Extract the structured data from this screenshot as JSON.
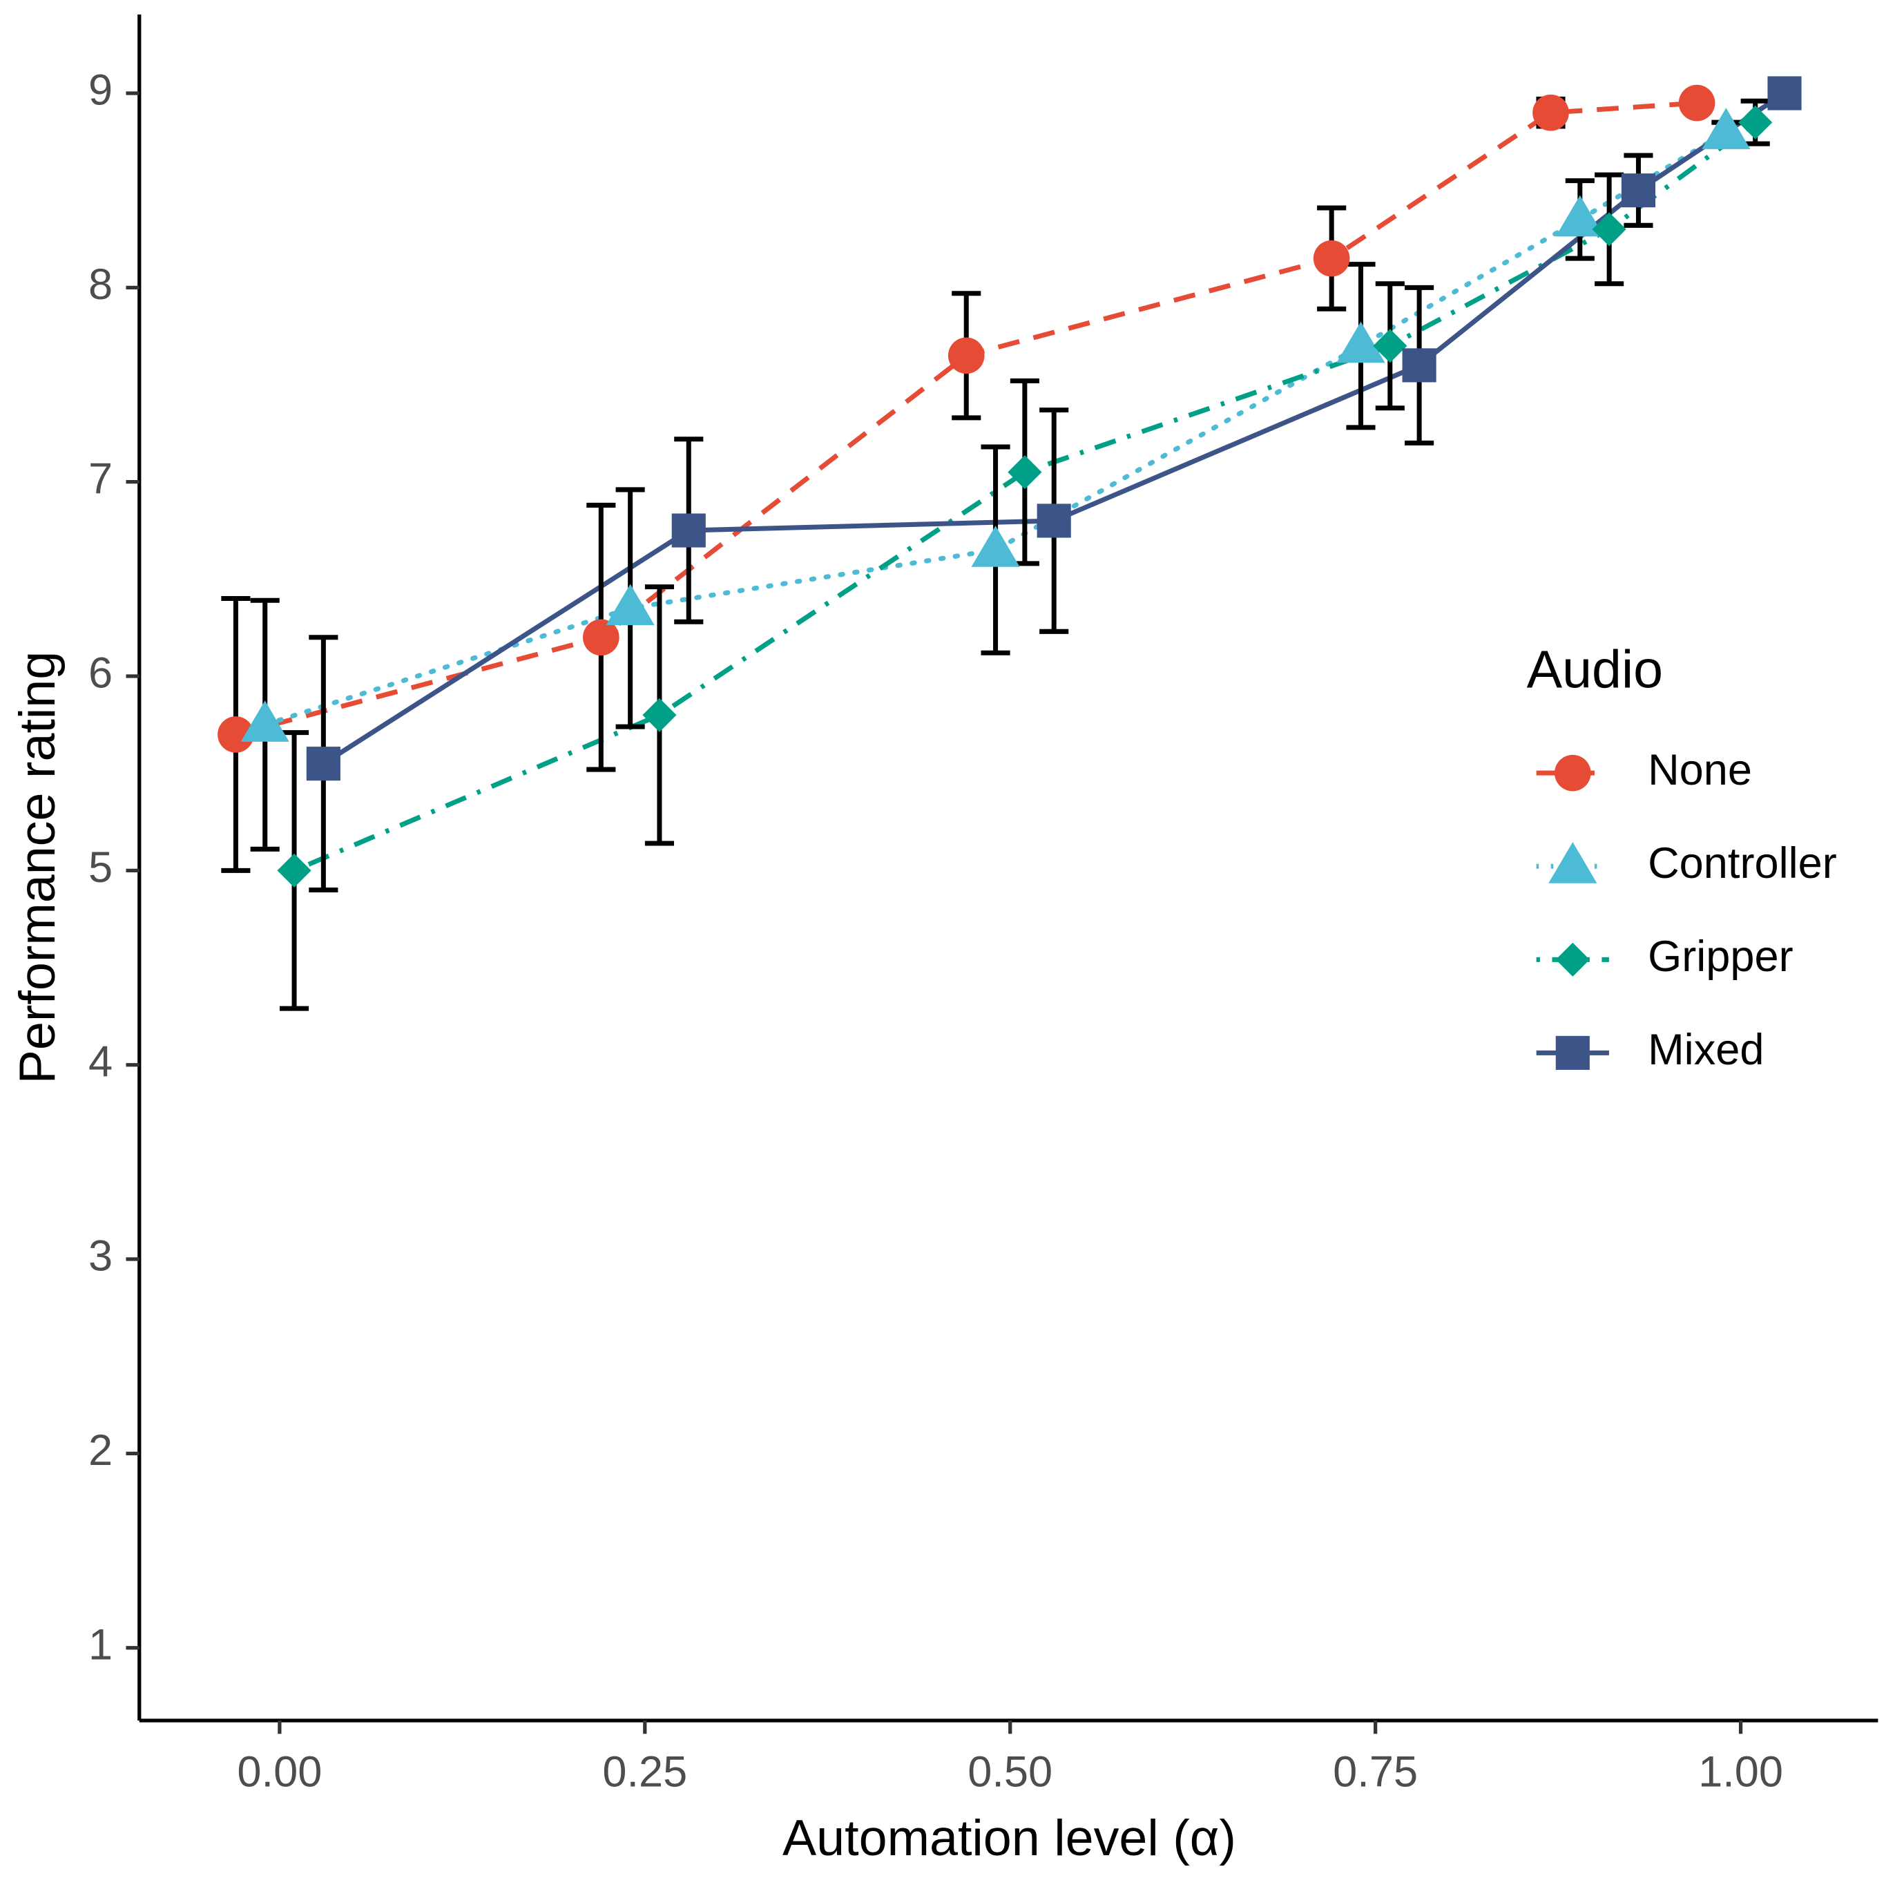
{
  "chart_data": {
    "type": "line",
    "xlabel": "Automation level (α)",
    "ylabel": "Performance rating",
    "legend_title": "Audio",
    "legend_position": "right",
    "grid": false,
    "xlim": [
      -0.096,
      1.094
    ],
    "ylim": [
      0.626,
      9.405
    ],
    "xticks": [
      {
        "value": 0,
        "label": "0.00"
      },
      {
        "value": 0.25,
        "label": "0.25"
      },
      {
        "value": 0.5,
        "label": "0.50"
      },
      {
        "value": 0.75,
        "label": "0.75"
      },
      {
        "value": 1,
        "label": "1.00"
      }
    ],
    "yticks": [
      1,
      2,
      3,
      4,
      5,
      6,
      7,
      8,
      9
    ],
    "series": [
      {
        "name": "None",
        "color": "#E64B35",
        "linestyle": "dashed",
        "marker": "circle",
        "x": [
          -0.03,
          0.22,
          0.47,
          0.72,
          0.87,
          0.97
        ],
        "values": [
          5.7,
          6.2,
          7.65,
          8.15,
          8.9,
          8.95
        ],
        "errors": [
          0.7,
          0.68,
          0.32,
          0.26,
          0.07,
          0.03
        ]
      },
      {
        "name": "Controller",
        "color": "#4DBBD5",
        "linestyle": "dotted",
        "marker": "triangle",
        "x": [
          -0.01,
          0.24,
          0.49,
          0.74,
          0.89,
          0.99
        ],
        "values": [
          5.75,
          6.35,
          6.65,
          7.7,
          8.35,
          8.8
        ],
        "errors": [
          0.64,
          0.61,
          0.53,
          0.42,
          0.2,
          0.05
        ]
      },
      {
        "name": "Gripper",
        "color": "#00A087",
        "linestyle": "dotdash",
        "marker": "diamond",
        "x": [
          0.01,
          0.26,
          0.51,
          0.76,
          0.91,
          1.01
        ],
        "values": [
          5.0,
          5.8,
          7.05,
          7.7,
          8.3,
          8.85
        ],
        "errors": [
          0.71,
          0.66,
          0.47,
          0.32,
          0.28,
          0.11
        ]
      },
      {
        "name": "Mixed",
        "color": "#3C5488",
        "linestyle": "solid",
        "marker": "square",
        "x": [
          0.03,
          0.28,
          0.53,
          0.78,
          0.93,
          1.03
        ],
        "values": [
          5.55,
          6.75,
          6.8,
          7.6,
          8.5,
          9.0
        ],
        "errors": [
          0.65,
          0.47,
          0.57,
          0.4,
          0.18,
          0.02
        ]
      }
    ]
  }
}
